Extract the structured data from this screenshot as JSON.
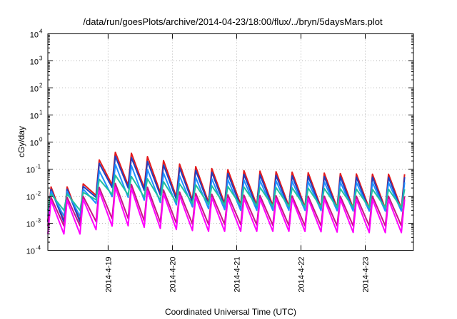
{
  "chart_data": {
    "type": "line",
    "title": "/data/run/goesPlots/archive/2014-04-23/18:00/flux/../bryn/5daysMars.plot",
    "xlabel": "Coordinated Universal Time (UTC)",
    "ylabel": "cGy/day",
    "xlim": [
      "2014-04-18 01:30",
      "2014-04-23 18:00"
    ],
    "ylim": [
      0.0001,
      10000
    ],
    "yscale": "log",
    "grid": true,
    "x_ticks": [
      "2014-4-19",
      "2014-4-20",
      "2014-4-21",
      "2014-4-22",
      "2014-4-23"
    ],
    "y_ticks": [
      {
        "base": "10",
        "exp": "-4"
      },
      {
        "base": "10",
        "exp": "-3"
      },
      {
        "base": "10",
        "exp": "-2"
      },
      {
        "base": "10",
        "exp": "-1"
      },
      {
        "base": "10",
        "exp": "0"
      },
      {
        "base": "10",
        "exp": "1"
      },
      {
        "base": "10",
        "exp": "2"
      },
      {
        "base": "10",
        "exp": "3"
      },
      {
        "base": "10",
        "exp": "4"
      }
    ],
    "sawtooth_period_hours": 6,
    "series": [
      {
        "color": "#e41a1c",
        "x": [
          "2014-04-18 01:30",
          "2014-04-18 14:00",
          "2014-04-18 20:00",
          "2014-04-19 02:00",
          "2014-04-19 08:00",
          "2014-04-19 14:00",
          "2014-04-20 00:00",
          "2014-04-20 12:00",
          "2014-04-21 00:00",
          "2014-04-22 00:00",
          "2014-04-23 00:00",
          "2014-04-23 18:00"
        ],
        "peak": [
          0.022,
          0.022,
          0.2,
          0.42,
          0.4,
          0.3,
          0.17,
          0.11,
          0.09,
          0.075,
          0.065,
          0.065
        ],
        "trough": [
          0.0012,
          0.0012,
          0.013,
          0.028,
          0.025,
          0.02,
          0.01,
          0.006,
          0.005,
          0.004,
          0.0035,
          0.0035
        ]
      },
      {
        "color": "#1f3fbf",
        "x": [
          "2014-04-18 01:30",
          "2014-04-18 14:00",
          "2014-04-18 20:00",
          "2014-04-19 02:00",
          "2014-04-19 08:00",
          "2014-04-19 14:00",
          "2014-04-20 00:00",
          "2014-04-20 12:00",
          "2014-04-21 00:00",
          "2014-04-22 00:00",
          "2014-04-23 00:00",
          "2014-04-23 18:00"
        ],
        "peak": [
          0.018,
          0.018,
          0.15,
          0.3,
          0.28,
          0.2,
          0.12,
          0.08,
          0.065,
          0.055,
          0.05,
          0.05
        ],
        "trough": [
          0.0011,
          0.0011,
          0.011,
          0.022,
          0.02,
          0.016,
          0.008,
          0.005,
          0.004,
          0.0035,
          0.003,
          0.003
        ]
      },
      {
        "color": "#1e90ff",
        "x": [
          "2014-04-18 01:30",
          "2014-04-18 14:00",
          "2014-04-18 20:00",
          "2014-04-19 02:00",
          "2014-04-19 08:00",
          "2014-04-19 14:00",
          "2014-04-20 00:00",
          "2014-04-20 12:00",
          "2014-04-21 00:00",
          "2014-04-22 00:00",
          "2014-04-23 00:00",
          "2014-04-23 18:00"
        ],
        "peak": [
          0.015,
          0.015,
          0.08,
          0.15,
          0.14,
          0.1,
          0.06,
          0.045,
          0.04,
          0.035,
          0.032,
          0.032
        ],
        "trough": [
          0.0018,
          0.0018,
          0.006,
          0.01,
          0.009,
          0.007,
          0.005,
          0.0035,
          0.003,
          0.003,
          0.0028,
          0.0028
        ]
      },
      {
        "color": "#20c0a0",
        "x": [
          "2014-04-18 01:30",
          "2014-04-18 14:00",
          "2014-04-18 20:00",
          "2014-04-19 02:00",
          "2014-04-19 08:00",
          "2014-04-19 14:00",
          "2014-04-20 00:00",
          "2014-04-20 12:00",
          "2014-04-21 00:00",
          "2014-04-22 00:00",
          "2014-04-23 00:00",
          "2014-04-23 18:00"
        ],
        "peak": [
          0.012,
          0.012,
          0.04,
          0.06,
          0.055,
          0.045,
          0.03,
          0.025,
          0.022,
          0.02,
          0.018,
          0.018
        ],
        "trough": [
          0.003,
          0.003,
          0.008,
          0.012,
          0.011,
          0.009,
          0.006,
          0.005,
          0.0045,
          0.004,
          0.0038,
          0.0038
        ]
      },
      {
        "color": "#c71585",
        "x": [
          "2014-04-18 01:30",
          "2014-04-18 14:00",
          "2014-04-18 20:00",
          "2014-04-19 02:00",
          "2014-04-19 08:00",
          "2014-04-19 14:00",
          "2014-04-20 00:00",
          "2014-04-20 12:00",
          "2014-04-21 00:00",
          "2014-04-22 00:00",
          "2014-04-23 00:00",
          "2014-04-23 18:00"
        ],
        "peak": [
          0.009,
          0.009,
          0.02,
          0.03,
          0.028,
          0.022,
          0.015,
          0.012,
          0.011,
          0.01,
          0.01,
          0.01
        ],
        "trough": [
          0.0008,
          0.0008,
          0.0012,
          0.0015,
          0.0015,
          0.0012,
          0.001,
          0.0009,
          0.0009,
          0.0008,
          0.0008,
          0.0008
        ]
      },
      {
        "color": "#ff00ff",
        "x": [
          "2014-04-18 01:30",
          "2014-04-18 14:00",
          "2014-04-18 20:00",
          "2014-04-19 02:00",
          "2014-04-19 08:00",
          "2014-04-19 14:00",
          "2014-04-20 00:00",
          "2014-04-20 12:00",
          "2014-04-21 00:00",
          "2014-04-22 00:00",
          "2014-04-23 00:00",
          "2014-04-23 18:00"
        ],
        "peak": [
          0.007,
          0.007,
          0.015,
          0.022,
          0.02,
          0.016,
          0.011,
          0.009,
          0.008,
          0.008,
          0.0075,
          0.0075
        ],
        "trough": [
          0.0004,
          0.0004,
          0.0006,
          0.0008,
          0.0008,
          0.0007,
          0.0006,
          0.0005,
          0.0005,
          0.0005,
          0.00045,
          0.00045
        ]
      }
    ]
  }
}
